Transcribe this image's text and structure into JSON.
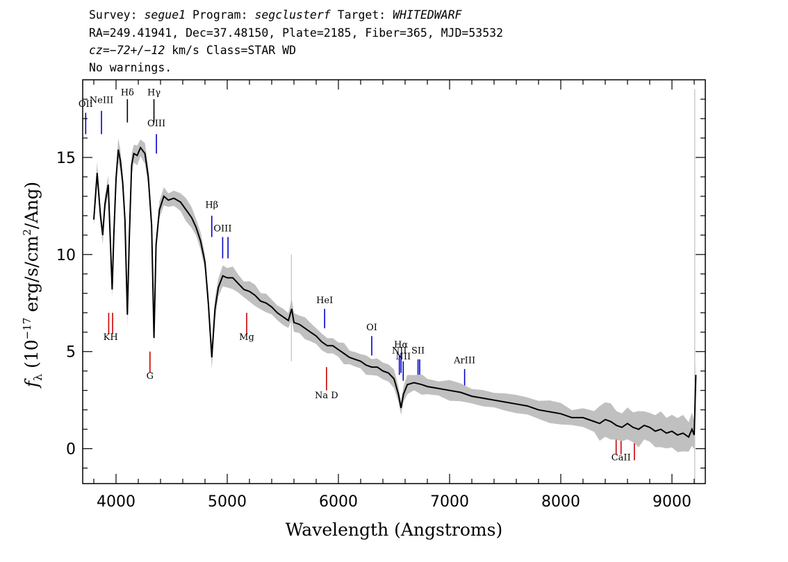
{
  "header": {
    "line1": {
      "survey_label": "Survey: ",
      "survey": "segue1",
      "program_label": " Program: ",
      "program": "segclusterf",
      "target_label": " Target: ",
      "target": "WHITEDWARF"
    },
    "line2": "RA=249.41941, Dec=37.48150, Plate=2185, Fiber=365, MJD=53532",
    "line3": {
      "cz_label": "cz",
      "cz_value": "=−72+/−12",
      "cz_unit": " km/s Class=STAR WD"
    },
    "line4": "No warnings."
  },
  "chart_data": {
    "type": "line",
    "xlabel": "Wavelength (Angstroms)",
    "ylabel": {
      "f": "f",
      "sub": "λ",
      "rest": " (10",
      "exp": "−17",
      "rest2": " erg/s/cm",
      "exp2": "2",
      "rest3": "/Ang)"
    },
    "xlim": [
      3700,
      9300
    ],
    "ylim": [
      -1.8,
      19
    ],
    "xticks": [
      4000,
      5000,
      6000,
      7000,
      8000,
      9000
    ],
    "yticks": [
      0,
      5,
      10,
      15
    ],
    "colors": {
      "spectrum": "#000000",
      "error": "#c0c0c0",
      "emission": "#0000cc",
      "absorption": "#cc0000"
    },
    "spectrum": [
      [
        3800,
        11.8
      ],
      [
        3830,
        14.2
      ],
      [
        3860,
        12.0
      ],
      [
        3880,
        11.0
      ],
      [
        3900,
        12.6
      ],
      [
        3930,
        13.6
      ],
      [
        3950,
        10.5
      ],
      [
        3965,
        8.2
      ],
      [
        3980,
        11.0
      ],
      [
        4000,
        13.9
      ],
      [
        4020,
        15.4
      ],
      [
        4040,
        14.8
      ],
      [
        4060,
        13.7
      ],
      [
        4080,
        11.8
      ],
      [
        4102,
        6.9
      ],
      [
        4120,
        11.0
      ],
      [
        4140,
        14.6
      ],
      [
        4160,
        15.2
      ],
      [
        4190,
        15.1
      ],
      [
        4220,
        15.5
      ],
      [
        4260,
        15.2
      ],
      [
        4290,
        14.0
      ],
      [
        4320,
        11.5
      ],
      [
        4341,
        5.7
      ],
      [
        4360,
        10.5
      ],
      [
        4390,
        12.3
      ],
      [
        4430,
        13.0
      ],
      [
        4470,
        12.8
      ],
      [
        4520,
        12.9
      ],
      [
        4580,
        12.7
      ],
      [
        4630,
        12.3
      ],
      [
        4680,
        11.9
      ],
      [
        4720,
        11.4
      ],
      [
        4760,
        10.7
      ],
      [
        4800,
        9.6
      ],
      [
        4830,
        7.5
      ],
      [
        4861,
        4.7
      ],
      [
        4890,
        7.2
      ],
      [
        4920,
        8.3
      ],
      [
        4960,
        8.9
      ],
      [
        5000,
        8.8
      ],
      [
        5050,
        8.8
      ],
      [
        5100,
        8.5
      ],
      [
        5150,
        8.2
      ],
      [
        5200,
        8.1
      ],
      [
        5250,
        7.9
      ],
      [
        5300,
        7.6
      ],
      [
        5350,
        7.5
      ],
      [
        5400,
        7.3
      ],
      [
        5450,
        7.0
      ],
      [
        5500,
        6.8
      ],
      [
        5550,
        6.6
      ],
      [
        5580,
        7.2
      ],
      [
        5600,
        6.5
      ],
      [
        5650,
        6.4
      ],
      [
        5700,
        6.2
      ],
      [
        5750,
        6.0
      ],
      [
        5800,
        5.8
      ],
      [
        5850,
        5.5
      ],
      [
        5900,
        5.3
      ],
      [
        5950,
        5.3
      ],
      [
        6000,
        5.1
      ],
      [
        6050,
        4.9
      ],
      [
        6100,
        4.7
      ],
      [
        6150,
        4.6
      ],
      [
        6200,
        4.5
      ],
      [
        6250,
        4.3
      ],
      [
        6300,
        4.2
      ],
      [
        6350,
        4.2
      ],
      [
        6400,
        4.0
      ],
      [
        6450,
        3.9
      ],
      [
        6500,
        3.6
      ],
      [
        6540,
        2.8
      ],
      [
        6563,
        2.1
      ],
      [
        6585,
        2.8
      ],
      [
        6620,
        3.3
      ],
      [
        6680,
        3.4
      ],
      [
        6750,
        3.3
      ],
      [
        6800,
        3.2
      ],
      [
        6900,
        3.1
      ],
      [
        7000,
        3.0
      ],
      [
        7100,
        2.9
      ],
      [
        7200,
        2.7
      ],
      [
        7300,
        2.6
      ],
      [
        7400,
        2.5
      ],
      [
        7500,
        2.4
      ],
      [
        7600,
        2.3
      ],
      [
        7700,
        2.2
      ],
      [
        7800,
        2.0
      ],
      [
        7900,
        1.9
      ],
      [
        8000,
        1.8
      ],
      [
        8100,
        1.6
      ],
      [
        8200,
        1.6
      ],
      [
        8300,
        1.4
      ],
      [
        8350,
        1.3
      ],
      [
        8400,
        1.5
      ],
      [
        8450,
        1.4
      ],
      [
        8500,
        1.2
      ],
      [
        8550,
        1.1
      ],
      [
        8600,
        1.3
      ],
      [
        8650,
        1.1
      ],
      [
        8700,
        1.0
      ],
      [
        8750,
        1.2
      ],
      [
        8800,
        1.1
      ],
      [
        8850,
        0.9
      ],
      [
        8900,
        1.0
      ],
      [
        8950,
        0.8
      ],
      [
        9000,
        0.9
      ],
      [
        9050,
        0.7
      ],
      [
        9100,
        0.8
      ],
      [
        9150,
        0.6
      ],
      [
        9180,
        1.0
      ],
      [
        9200,
        0.7
      ],
      [
        9215,
        3.8
      ]
    ],
    "emission_lines": [
      {
        "label": "OII",
        "wave": 3727,
        "ymin": 16.2,
        "ymax": 17.3,
        "label_y": 17.6
      },
      {
        "label": "NeIII",
        "wave": 3869,
        "ymin": 16.2,
        "ymax": 17.4,
        "label_y": 17.8
      },
      {
        "label": "OIII",
        "wave": 4363,
        "ymin": 15.2,
        "ymax": 16.2,
        "label_y": 16.6
      },
      {
        "label": "Hβ",
        "wave": 4861,
        "ymin": 10.9,
        "ymax": 12.0,
        "label_y": 12.4
      },
      {
        "label": "OIII",
        "wave": 4959,
        "ymin": 9.8,
        "ymax": 10.9,
        "label_y": 11.2
      },
      {
        "label": "OIII",
        "wave": 5007,
        "ymin": 9.8,
        "ymax": 10.9,
        "label_y": null
      },
      {
        "label": "HeI",
        "wave": 5876,
        "ymin": 6.2,
        "ymax": 7.2,
        "label_y": 7.5
      },
      {
        "label": "OI",
        "wave": 6300,
        "ymin": 4.8,
        "ymax": 5.8,
        "label_y": 6.1
      },
      {
        "label": "NII",
        "wave": 6548,
        "ymin": 3.8,
        "ymax": 4.8,
        "label_y": 4.9
      },
      {
        "label": "Hα",
        "wave": 6563,
        "ymin": 3.9,
        "ymax": 4.9,
        "label_y": 5.2
      },
      {
        "label": "NII",
        "wave": 6583,
        "ymin": 3.5,
        "ymax": 4.5,
        "label_y": 4.6
      },
      {
        "label": "SII",
        "wave": 6716,
        "ymin": 3.6,
        "ymax": 4.6,
        "label_y": 4.9
      },
      {
        "label": "SII",
        "wave": 6731,
        "ymin": 3.6,
        "ymax": 4.6,
        "label_y": null
      },
      {
        "label": "ArIII",
        "wave": 7135,
        "ymin": 3.0,
        "ymax": 4.1,
        "label_y": 4.4
      }
    ],
    "balmer_marks": [
      {
        "label": "Hδ",
        "wave": 4102,
        "ymin": 16.8,
        "ymax": 18.0,
        "label_y": 18.2
      },
      {
        "label": "Hγ",
        "wave": 4341,
        "ymin": 16.8,
        "ymax": 18.0,
        "label_y": 18.2
      }
    ],
    "absorption_lines": [
      {
        "label": "K",
        "wave": 3934,
        "ymin": 5.9,
        "ymax": 7.0,
        "label_y": null
      },
      {
        "label": "H",
        "wave": 3969,
        "ymin": 5.9,
        "ymax": 7.0,
        "label_y": null
      },
      {
        "label": "KH",
        "wave": 3951,
        "ymin": 5.9,
        "ymax": 5.9,
        "label_y": 5.6
      },
      {
        "label": "G",
        "wave": 4305,
        "ymin": 3.9,
        "ymax": 5.0,
        "label_y": 3.6
      },
      {
        "label": "Mg",
        "wave": 5175,
        "ymin": 5.9,
        "ymax": 7.0,
        "label_y": 5.6
      },
      {
        "label": "Na D",
        "wave": 5893,
        "ymin": 3.0,
        "ymax": 4.2,
        "label_y": 2.6
      },
      {
        "label": "",
        "wave": 8498,
        "ymin": -0.3,
        "ymax": 0.7,
        "label_y": null
      },
      {
        "label": "CaII",
        "wave": 8542,
        "ymin": -0.3,
        "ymax": 0.7,
        "label_y": -0.6
      },
      {
        "label": "",
        "wave": 8662,
        "ymin": -0.6,
        "ymax": 0.4,
        "label_y": null
      }
    ],
    "spikes": [
      {
        "wave": 5577,
        "ymin": 4.5,
        "ymax": 10.0
      },
      {
        "wave": 9205,
        "ymin": -1.8,
        "ymax": 18.5
      }
    ]
  }
}
